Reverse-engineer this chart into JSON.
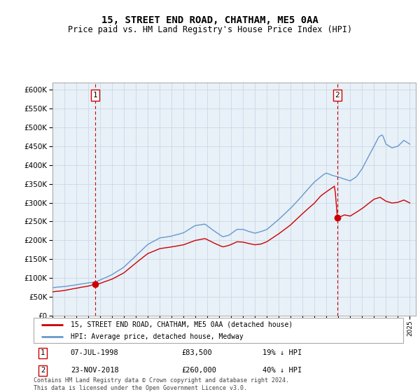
{
  "title": "15, STREET END ROAD, CHATHAM, ME5 0AA",
  "subtitle": "Price paid vs. HM Land Registry's House Price Index (HPI)",
  "legend_line1": "15, STREET END ROAD, CHATHAM, ME5 0AA (detached house)",
  "legend_line2": "HPI: Average price, detached house, Medway",
  "annotation1_label": "1",
  "annotation1_date": "07-JUL-1998",
  "annotation1_price": "£83,500",
  "annotation1_hpi": "19% ↓ HPI",
  "annotation2_label": "2",
  "annotation2_date": "23-NOV-2018",
  "annotation2_price": "£260,000",
  "annotation2_hpi": "40% ↓ HPI",
  "footer": "Contains HM Land Registry data © Crown copyright and database right 2024.\nThis data is licensed under the Open Government Licence v3.0.",
  "hpi_color": "#6699cc",
  "price_color": "#cc0000",
  "plot_bg": "#e8f0f8",
  "marker_color": "#cc0000",
  "vline_color": "#cc0000",
  "ylim_min": 0,
  "ylim_max": 620000,
  "ytick_step": 50000,
  "sale1_year": 1998.583,
  "sale1_price": 83500,
  "sale2_year": 2018.917,
  "sale2_price": 260000
}
